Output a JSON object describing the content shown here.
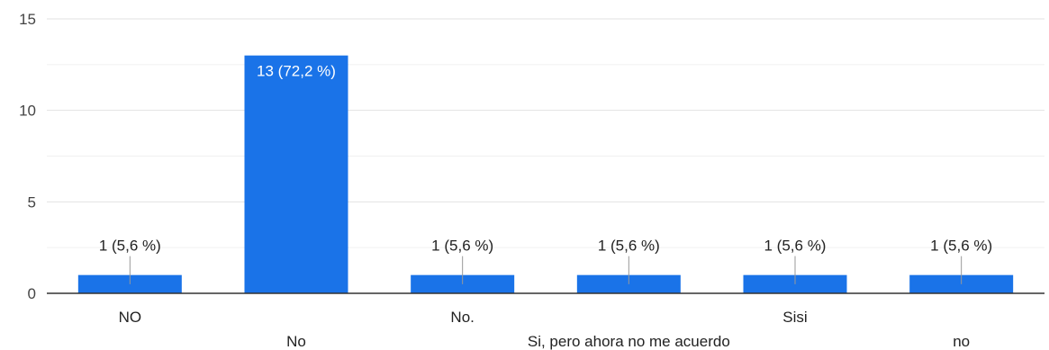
{
  "chart_data": {
    "type": "bar",
    "title": "",
    "xlabel": "",
    "ylabel": "",
    "ylim": [
      0,
      15
    ],
    "yticks": [
      0,
      5,
      10,
      15
    ],
    "grid": true,
    "categories": [
      "NO",
      "No",
      "No.",
      "Si, pero ahora no me acuerdo",
      "Sisi",
      "no"
    ],
    "values": [
      1,
      13,
      1,
      1,
      1,
      1
    ],
    "data_labels": [
      "1 (5,6 %)",
      "13 (72,2 %)",
      "1 (5,6 %)",
      "1 (5,6 %)",
      "1 (5,6 %)",
      "1 (5,6 %)"
    ],
    "colors": {
      "bar": "#1a73e8",
      "grid": "#e8e8e8",
      "axis": "#333333",
      "leader": "#999999"
    }
  }
}
